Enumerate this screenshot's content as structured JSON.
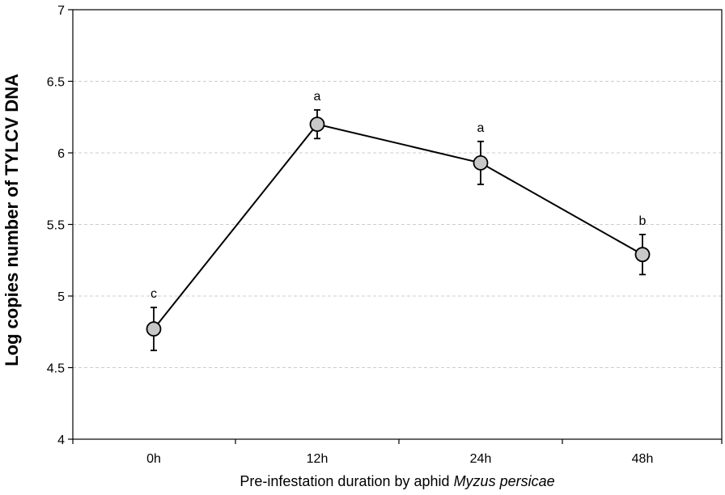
{
  "chart_data": {
    "type": "line",
    "title": "",
    "xlabel": "Pre-infestation duration by aphid",
    "xlabel_italic": "Myzus persicae",
    "ylabel": "Log copies number of TYLCV DNA",
    "categories": [
      "0h",
      "12h",
      "24h",
      "48h"
    ],
    "ylim": [
      4,
      7
    ],
    "yticks": [
      4,
      4.5,
      5,
      5.5,
      6,
      6.5,
      7
    ],
    "ytick_labels": [
      "4",
      "4.5",
      "5",
      "5.5",
      "6",
      "6.5",
      "7"
    ],
    "grid": true,
    "series": [
      {
        "values": [
          4.77,
          6.2,
          5.93,
          5.29
        ],
        "error": [
          0.15,
          0.1,
          0.15,
          0.14
        ],
        "significance": [
          "c",
          "a",
          "a",
          "b"
        ]
      }
    ],
    "colors": {
      "line": "#000000",
      "marker_fill": "#c8c8c8",
      "grid": "#cccccc"
    }
  }
}
